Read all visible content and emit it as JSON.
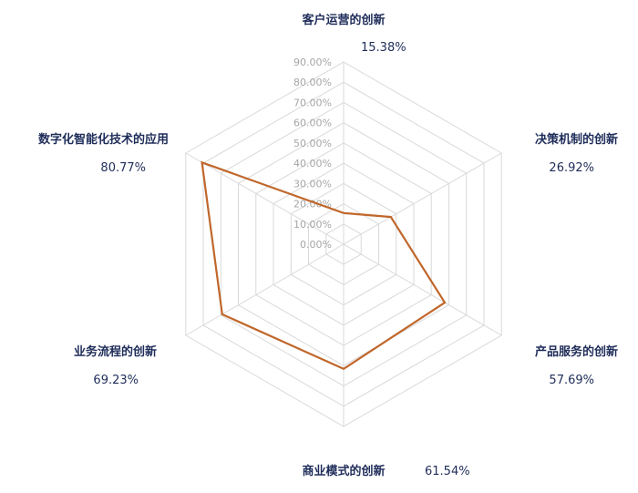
{
  "chart_data": {
    "type": "radar",
    "categories": [
      "客户运营的创新",
      "决策机制的创新",
      "产品服务的创新",
      "商业模式的创新",
      "业务流程的创新",
      "数字化智能化技术的应用"
    ],
    "series": [
      {
        "values": [
          15.38,
          26.92,
          57.69,
          61.54,
          69.23,
          80.77
        ]
      }
    ],
    "value_labels": [
      "15.38%",
      "26.92%",
      "57.69%",
      "61.54%",
      "69.23%",
      "80.77%"
    ],
    "rlim": [
      0,
      90
    ],
    "ticks": [
      "0.00%",
      "10.00%",
      "20.00%",
      "30.00%",
      "40.00%",
      "50.00%",
      "60.00%",
      "70.00%",
      "80.00%",
      "90.00%"
    ],
    "grid": true,
    "line_color": "#c0672b",
    "grid_color": "#d9d9d9",
    "label_color": "#1f2d5a",
    "tick_color": "#a6a6a6"
  }
}
